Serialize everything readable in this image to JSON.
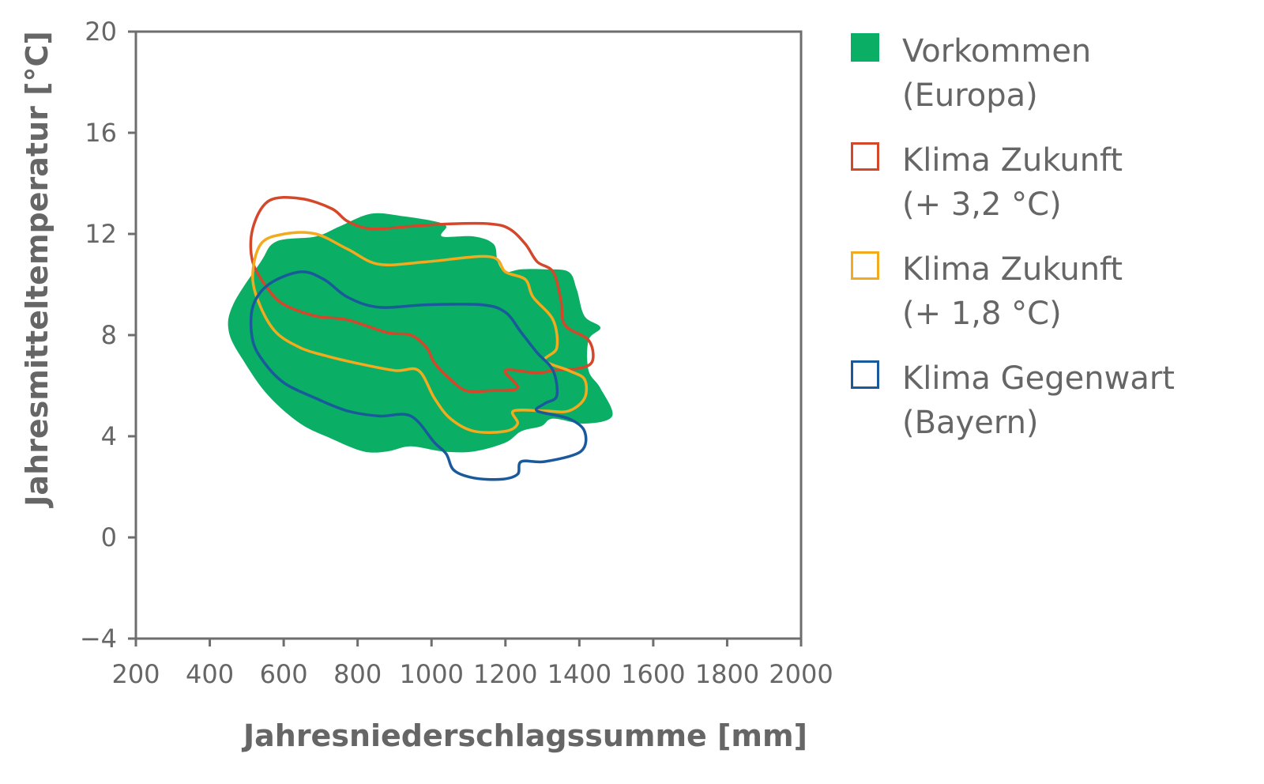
{
  "chart_data": {
    "type": "area",
    "title": "",
    "xlabel": "Jahresniederschlagssumme [mm]",
    "ylabel": "Jahresmitteltemperatur [°C]",
    "xlim": [
      200,
      2000
    ],
    "ylim": [
      -4,
      20
    ],
    "xticks": [
      200,
      400,
      600,
      800,
      1000,
      1200,
      1400,
      1600,
      1800,
      2000
    ],
    "yticks": [
      -4,
      0,
      4,
      8,
      12,
      16,
      20
    ],
    "ytick_labels": [
      "−4",
      "0",
      "4",
      "8",
      "12",
      "16",
      "20"
    ],
    "grid": false,
    "legend_placement": "right",
    "series": [
      {
        "name": "Vorkommen (Europa)",
        "label_lines": [
          "Vorkommen",
          "(Europa)"
        ],
        "style": "filled",
        "color": "#0aae64",
        "points": [
          [
            463,
            9.2
          ],
          [
            538,
            10.9
          ],
          [
            580,
            11.7
          ],
          [
            687,
            11.9
          ],
          [
            752,
            12.3
          ],
          [
            837,
            12.8
          ],
          [
            923,
            12.7
          ],
          [
            1008,
            12.5
          ],
          [
            1040,
            12.3
          ],
          [
            1029,
            11.9
          ],
          [
            1115,
            11.9
          ],
          [
            1168,
            11.6
          ],
          [
            1179,
            10.9
          ],
          [
            1200,
            10.5
          ],
          [
            1243,
            10.6
          ],
          [
            1307,
            10.6
          ],
          [
            1371,
            10.5
          ],
          [
            1393,
            9.8
          ],
          [
            1414,
            8.75
          ],
          [
            1457,
            8.3
          ],
          [
            1425,
            7.8
          ],
          [
            1425,
            6.6
          ],
          [
            1457,
            5.9
          ],
          [
            1489,
            4.8
          ],
          [
            1414,
            4.5
          ],
          [
            1329,
            4.7
          ],
          [
            1297,
            4.4
          ],
          [
            1243,
            4.2
          ],
          [
            1200,
            3.75
          ],
          [
            1115,
            3.4
          ],
          [
            1029,
            3.4
          ],
          [
            944,
            3.6
          ],
          [
            880,
            3.4
          ],
          [
            816,
            3.4
          ],
          [
            730,
            3.9
          ],
          [
            645,
            4.5
          ],
          [
            559,
            5.6
          ],
          [
            495,
            6.9
          ],
          [
            452,
            8.1
          ]
        ]
      },
      {
        "name": "Klima Zukunft (+ 3,2 °C)",
        "label_lines": [
          "Klima Zukunft",
          "(+ 3,2 °C)"
        ],
        "style": "outline",
        "color": "#d5472a",
        "points": [
          [
            559,
            13.3
          ],
          [
            645,
            13.4
          ],
          [
            730,
            13.0
          ],
          [
            773,
            12.5
          ],
          [
            837,
            12.2
          ],
          [
            944,
            12.3
          ],
          [
            1051,
            12.4
          ],
          [
            1158,
            12.4
          ],
          [
            1211,
            12.2
          ],
          [
            1254,
            11.6
          ],
          [
            1286,
            10.9
          ],
          [
            1329,
            10.5
          ],
          [
            1350,
            9.4
          ],
          [
            1361,
            8.4
          ],
          [
            1425,
            7.8
          ],
          [
            1436,
            7.0
          ],
          [
            1404,
            6.7
          ],
          [
            1329,
            6.6
          ],
          [
            1286,
            6.5
          ],
          [
            1200,
            6.6
          ],
          [
            1233,
            5.9
          ],
          [
            1158,
            5.8
          ],
          [
            1094,
            5.8
          ],
          [
            1051,
            6.25
          ],
          [
            1008,
            6.9
          ],
          [
            987,
            7.5
          ],
          [
            944,
            8.0
          ],
          [
            880,
            8.1
          ],
          [
            773,
            8.6
          ],
          [
            687,
            8.75
          ],
          [
            602,
            9.2
          ],
          [
            559,
            9.8
          ],
          [
            516,
            10.9
          ],
          [
            516,
            12.2
          ]
        ]
      },
      {
        "name": "Klima Zukunft (+ 1,8 °C)",
        "label_lines": [
          "Klima Zukunft",
          "(+ 1,8 °C)"
        ],
        "style": "outline",
        "color": "#f2aa1e",
        "points": [
          [
            538,
            11.6
          ],
          [
            602,
            12.0
          ],
          [
            687,
            12.0
          ],
          [
            773,
            11.4
          ],
          [
            858,
            10.8
          ],
          [
            987,
            10.9
          ],
          [
            1158,
            11.1
          ],
          [
            1200,
            10.5
          ],
          [
            1254,
            10.2
          ],
          [
            1275,
            9.5
          ],
          [
            1329,
            8.6
          ],
          [
            1339,
            7.5
          ],
          [
            1307,
            7.0
          ],
          [
            1371,
            6.6
          ],
          [
            1414,
            6.25
          ],
          [
            1414,
            5.5
          ],
          [
            1371,
            5.0
          ],
          [
            1307,
            5.0
          ],
          [
            1222,
            5.0
          ],
          [
            1233,
            4.5
          ],
          [
            1200,
            4.2
          ],
          [
            1115,
            4.2
          ],
          [
            1051,
            4.7
          ],
          [
            1008,
            5.5
          ],
          [
            965,
            6.6
          ],
          [
            901,
            6.6
          ],
          [
            794,
            6.9
          ],
          [
            709,
            7.2
          ],
          [
            645,
            7.5
          ],
          [
            580,
            8.1
          ],
          [
            538,
            9.1
          ],
          [
            516,
            10.3
          ]
        ]
      },
      {
        "name": "Klima Gegenwart (Bayern)",
        "label_lines": [
          "Klima Gegenwart",
          "(Bayern)"
        ],
        "style": "outline",
        "color": "#1a5a9c",
        "points": [
          [
            516,
            9.1
          ],
          [
            559,
            10.0
          ],
          [
            645,
            10.5
          ],
          [
            709,
            10.2
          ],
          [
            773,
            9.5
          ],
          [
            858,
            9.1
          ],
          [
            987,
            9.2
          ],
          [
            1136,
            9.2
          ],
          [
            1200,
            8.9
          ],
          [
            1243,
            8.1
          ],
          [
            1286,
            7.3
          ],
          [
            1329,
            6.6
          ],
          [
            1339,
            5.6
          ],
          [
            1307,
            5.3
          ],
          [
            1286,
            5.0
          ],
          [
            1371,
            4.7
          ],
          [
            1414,
            4.2
          ],
          [
            1404,
            3.4
          ],
          [
            1307,
            3.0
          ],
          [
            1243,
            3.0
          ],
          [
            1233,
            2.5
          ],
          [
            1190,
            2.3
          ],
          [
            1115,
            2.35
          ],
          [
            1061,
            2.65
          ],
          [
            1040,
            3.3
          ],
          [
            1008,
            3.75
          ],
          [
            944,
            4.8
          ],
          [
            858,
            4.8
          ],
          [
            773,
            5.0
          ],
          [
            687,
            5.5
          ],
          [
            602,
            6.1
          ],
          [
            548,
            6.9
          ],
          [
            516,
            7.8
          ]
        ]
      }
    ]
  }
}
